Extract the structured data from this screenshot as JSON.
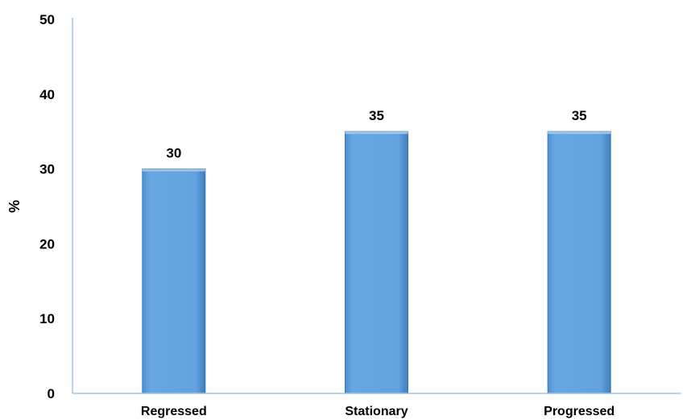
{
  "chart_data": {
    "type": "bar",
    "categories": [
      "Regressed",
      "Stationary",
      "Progressed"
    ],
    "values": [
      30,
      35,
      35
    ],
    "data_labels": [
      "30",
      "35",
      "35"
    ],
    "ylabel": "%",
    "ylim": [
      0,
      50
    ],
    "yticks": [
      "0",
      "10",
      "20",
      "30",
      "40",
      "50"
    ],
    "grid": false,
    "legend": "none",
    "bar_color": "#62a2dd",
    "bar_edge_color": "#3a79b6",
    "axis_color": "#9ec3e6"
  }
}
